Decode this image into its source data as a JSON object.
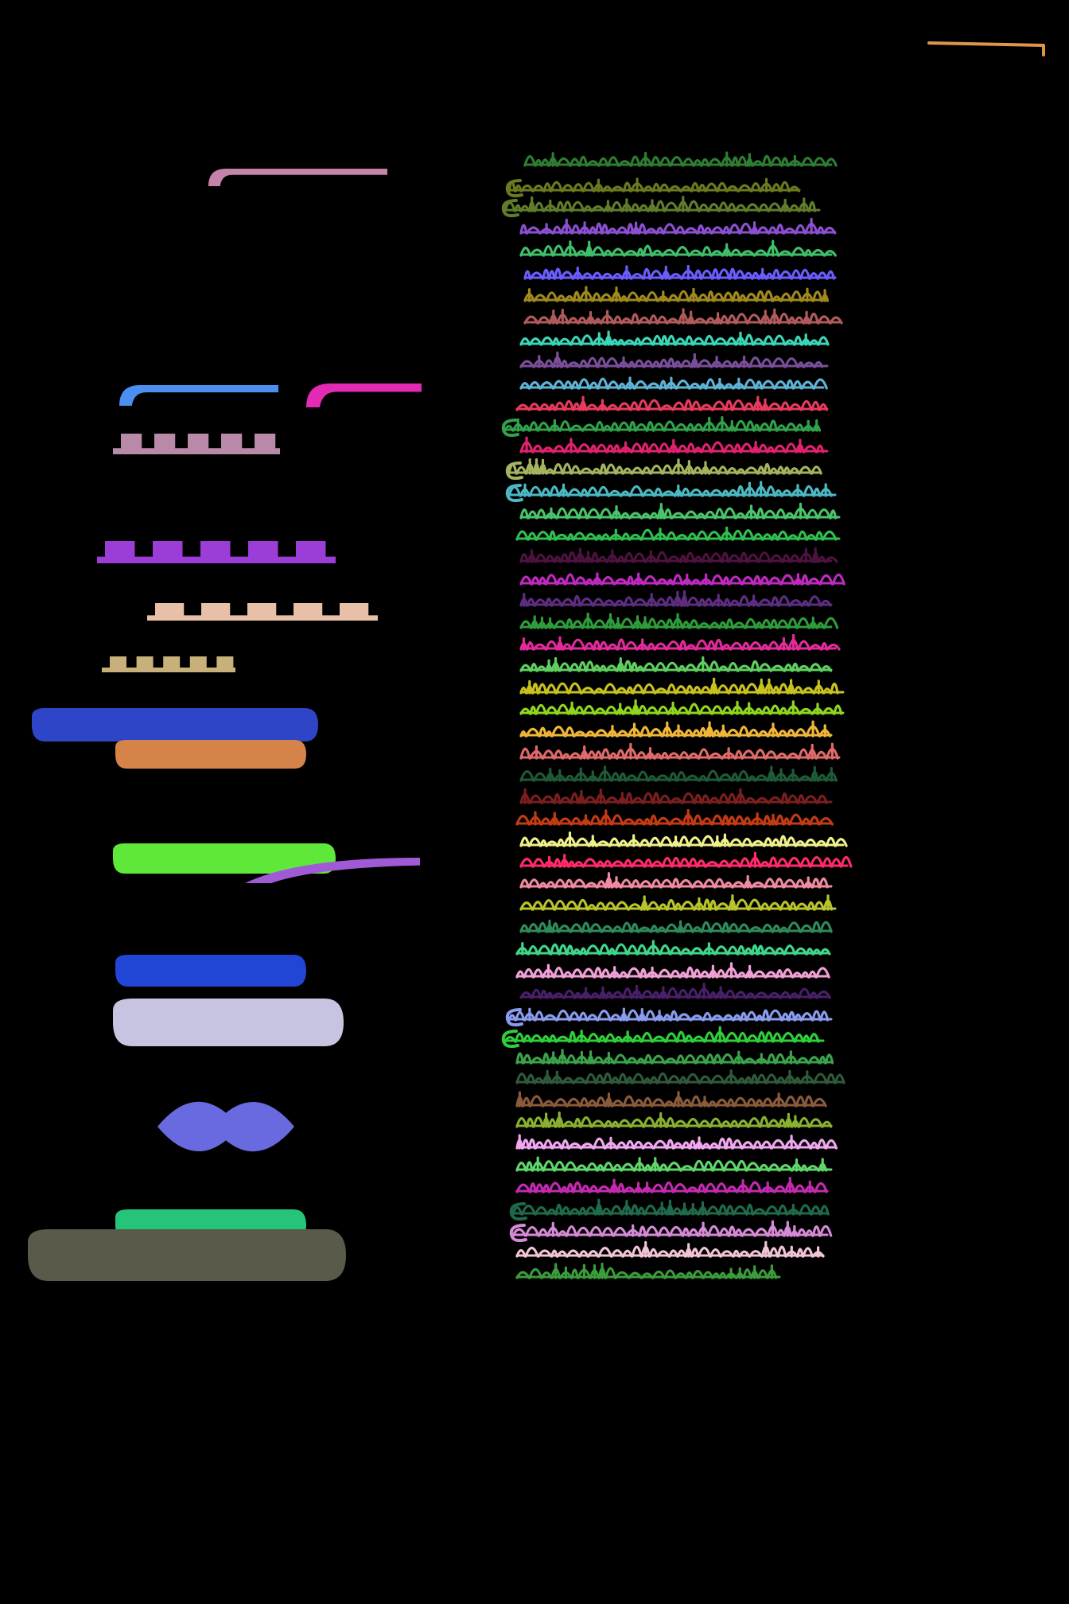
{
  "page": {
    "background": "#000000"
  },
  "text_lines": [
    {
      "color": "#2e7d32"
    },
    {
      "color": "#6b7a1f"
    },
    {
      "color": "#5f7d2a"
    },
    {
      "color": "#8b4fd1"
    },
    {
      "color": "#3fbf6a"
    },
    {
      "color": "#6a5cff"
    },
    {
      "color": "#a08a1e"
    },
    {
      "color": "#b05a5a"
    },
    {
      "color": "#3bd6b8"
    },
    {
      "color": "#7a4e9a"
    },
    {
      "color": "#5db3d6"
    },
    {
      "color": "#e83a5c"
    },
    {
      "color": "#2fa24a"
    },
    {
      "color": "#e0226e"
    },
    {
      "color": "#a6b35e"
    },
    {
      "color": "#4bb8c2"
    },
    {
      "color": "#49c46b"
    },
    {
      "color": "#2fbf4f"
    },
    {
      "color": "#4e1240"
    },
    {
      "color": "#c029c0"
    },
    {
      "color": "#5e2d82"
    },
    {
      "color": "#2f9c3a"
    },
    {
      "color": "#e22a9a"
    },
    {
      "color": "#5fcf5f"
    },
    {
      "color": "#c7c21f"
    },
    {
      "color": "#8fd61f"
    },
    {
      "color": "#f0b63a"
    },
    {
      "color": "#e06a6a"
    },
    {
      "color": "#1f5a37"
    },
    {
      "color": "#7a1f1f"
    },
    {
      "color": "#c43a12"
    },
    {
      "color": "#f0f08a"
    },
    {
      "color": "#ff2a6a"
    },
    {
      "color": "#f08aa0"
    },
    {
      "color": "#b7c42a"
    },
    {
      "color": "#2f8a5a"
    },
    {
      "color": "#3fd68a"
    },
    {
      "color": "#f0a0d6"
    },
    {
      "color": "#4a1f6a"
    },
    {
      "color": "#8a9cf0"
    },
    {
      "color": "#2fcf3a"
    },
    {
      "color": "#3aa24a"
    },
    {
      "color": "#2f5a3a"
    },
    {
      "color": "#8a5a3a"
    },
    {
      "color": "#8ab02f"
    },
    {
      "color": "#f0a6f0"
    },
    {
      "color": "#5fd66a"
    },
    {
      "color": "#c42ab0"
    },
    {
      "color": "#1f6a4a"
    },
    {
      "color": "#d68ad6"
    },
    {
      "color": "#f0c4d6"
    },
    {
      "color": "#3a9c3a"
    }
  ],
  "margin_marks": [
    {
      "color": "#c483a8"
    },
    {
      "color": "#4b8ff0"
    },
    {
      "color": "#e22ab5"
    },
    {
      "color": "#b98aa8"
    },
    {
      "color": "#9b3dd6"
    },
    {
      "color": "#e8c0a8"
    },
    {
      "color": "#c8b07a"
    },
    {
      "color": "#2f45c8"
    },
    {
      "color": "#d6834a"
    },
    {
      "color": "#5fe83a"
    },
    {
      "color": "#a05ad6"
    },
    {
      "color": "#2146d6"
    },
    {
      "color": "#c6c4e0"
    },
    {
      "color": "#6a6ae0"
    },
    {
      "color": "#25c47a"
    },
    {
      "color": "#5a5a4a"
    }
  ],
  "corner_mark": {
    "color": "#e0964a"
  }
}
